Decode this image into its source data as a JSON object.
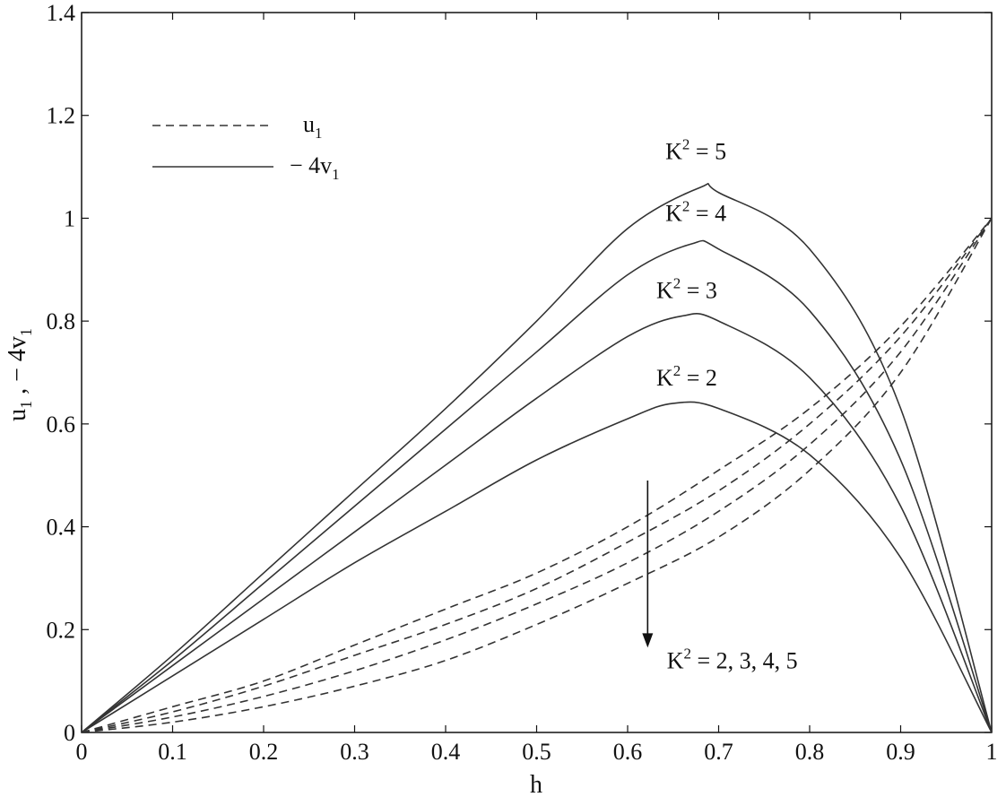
{
  "chart_data": {
    "type": "line",
    "title": "",
    "xlabel": "h",
    "ylabel_main": "u",
    "ylabel_sub1": "1",
    "ylabel_mid": " , − 4v",
    "ylabel_sub2": "1",
    "xlim": [
      0,
      1
    ],
    "ylim": [
      0,
      1.4
    ],
    "xticks": [
      0,
      0.1,
      0.2,
      0.3,
      0.4,
      0.5,
      0.6,
      0.7,
      0.8,
      0.9,
      1
    ],
    "xtick_labels": [
      "0",
      "0.1",
      "0.2",
      "0.3",
      "0.4",
      "0.5",
      "0.6",
      "0.7",
      "0.8",
      "0.9",
      "1"
    ],
    "yticks": [
      0,
      0.2,
      0.4,
      0.6,
      0.8,
      1,
      1.2,
      1.4
    ],
    "ytick_labels": [
      "0",
      "0.2",
      "0.4",
      "0.6",
      "0.8",
      "1",
      "1.2",
      "1.4"
    ],
    "grid": false,
    "legend_position": "top-left",
    "legend": [
      {
        "style": "dashed",
        "text_main": "u",
        "text_sub": "1"
      },
      {
        "style": "solid",
        "text_main": "− 4v",
        "text_sub": "1"
      }
    ],
    "series": [
      {
        "style": "solid",
        "K2": 2,
        "x": [
          0,
          0.1,
          0.2,
          0.3,
          0.4,
          0.5,
          0.6,
          0.65,
          0.7,
          0.8,
          0.9,
          1
        ],
        "y": [
          0,
          0.11,
          0.22,
          0.33,
          0.43,
          0.53,
          0.61,
          0.64,
          0.63,
          0.54,
          0.34,
          0
        ]
      },
      {
        "style": "solid",
        "K2": 3,
        "x": [
          0,
          0.1,
          0.2,
          0.3,
          0.4,
          0.5,
          0.6,
          0.66,
          0.7,
          0.8,
          0.9,
          1
        ],
        "y": [
          0,
          0.13,
          0.26,
          0.39,
          0.52,
          0.65,
          0.77,
          0.81,
          0.8,
          0.69,
          0.44,
          0
        ]
      },
      {
        "style": "solid",
        "K2": 4,
        "x": [
          0,
          0.1,
          0.2,
          0.3,
          0.4,
          0.5,
          0.6,
          0.67,
          0.7,
          0.8,
          0.9,
          1
        ],
        "y": [
          0,
          0.14,
          0.29,
          0.44,
          0.59,
          0.74,
          0.89,
          0.95,
          0.94,
          0.82,
          0.53,
          0
        ]
      },
      {
        "style": "solid",
        "K2": 5,
        "x": [
          0,
          0.1,
          0.2,
          0.3,
          0.4,
          0.5,
          0.6,
          0.68,
          0.7,
          0.8,
          0.9,
          1
        ],
        "y": [
          0,
          0.15,
          0.31,
          0.47,
          0.63,
          0.8,
          0.98,
          1.06,
          1.05,
          0.94,
          0.63,
          0
        ]
      },
      {
        "style": "dashed",
        "K2": 2,
        "x": [
          0,
          0.1,
          0.2,
          0.3,
          0.4,
          0.5,
          0.6,
          0.7,
          0.8,
          0.9,
          1
        ],
        "y": [
          0,
          0.05,
          0.1,
          0.17,
          0.24,
          0.31,
          0.4,
          0.51,
          0.63,
          0.79,
          1.0
        ]
      },
      {
        "style": "dashed",
        "K2": 3,
        "x": [
          0,
          0.1,
          0.2,
          0.3,
          0.4,
          0.5,
          0.6,
          0.7,
          0.8,
          0.9,
          1
        ],
        "y": [
          0,
          0.04,
          0.09,
          0.15,
          0.21,
          0.28,
          0.37,
          0.47,
          0.6,
          0.77,
          1.0
        ]
      },
      {
        "style": "dashed",
        "K2": 4,
        "x": [
          0,
          0.1,
          0.2,
          0.3,
          0.4,
          0.5,
          0.6,
          0.7,
          0.8,
          0.9,
          1
        ],
        "y": [
          0,
          0.03,
          0.07,
          0.12,
          0.18,
          0.25,
          0.33,
          0.43,
          0.56,
          0.74,
          1.0
        ]
      },
      {
        "style": "dashed",
        "K2": 5,
        "x": [
          0,
          0.1,
          0.2,
          0.3,
          0.4,
          0.5,
          0.6,
          0.7,
          0.8,
          0.9,
          1
        ],
        "y": [
          0,
          0.02,
          0.05,
          0.09,
          0.14,
          0.21,
          0.29,
          0.38,
          0.51,
          0.7,
          1.0
        ]
      }
    ],
    "annotations": [
      {
        "text_pre": "K",
        "text_sup": "2",
        "text_post": " = 5",
        "x": 0.675,
        "y": 1.115
      },
      {
        "text_pre": "K",
        "text_sup": "2",
        "text_post": " = 4",
        "x": 0.675,
        "y": 0.995
      },
      {
        "text_pre": "K",
        "text_sup": "2",
        "text_post": " = 3",
        "x": 0.665,
        "y": 0.845
      },
      {
        "text_pre": "K",
        "text_sup": "2",
        "text_post": " = 2",
        "x": 0.665,
        "y": 0.675
      },
      {
        "text_pre": "K",
        "text_sup": "2",
        "text_post": " = 2, 3, 4, 5",
        "x": 0.715,
        "y": 0.125
      }
    ],
    "arrow": {
      "x": 0.622,
      "y_start": 0.49,
      "y_end": 0.165
    }
  }
}
